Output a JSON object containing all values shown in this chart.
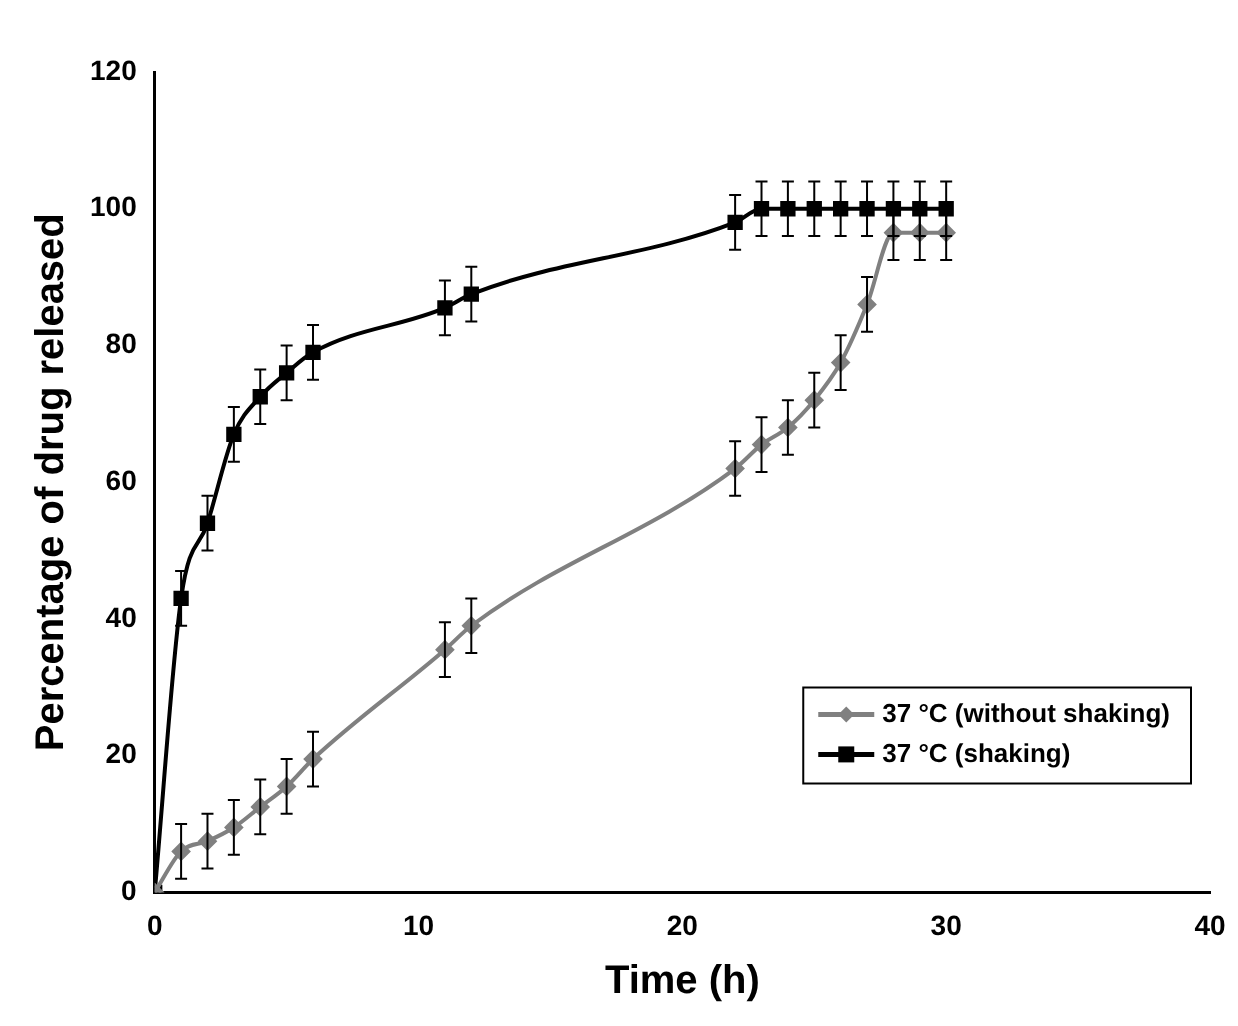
{
  "chart_data": {
    "type": "line",
    "xlabel": "Time (h)",
    "ylabel": "Percentage of drug released",
    "xlim": [
      0,
      40
    ],
    "xticks": [
      0,
      10,
      20,
      30,
      40
    ],
    "ylim": [
      0,
      120
    ],
    "yticks": [
      0,
      20,
      40,
      60,
      80,
      100,
      120
    ],
    "grid": false,
    "legend": "bottom right",
    "line_style": "solid",
    "series": [
      {
        "name": "37 °C (without shaking)",
        "color": "#808080",
        "marker": "diamond",
        "x": [
          0,
          1,
          2,
          3,
          4,
          5,
          6,
          11,
          12,
          22,
          23,
          24,
          25,
          26,
          27,
          28,
          29,
          30
        ],
        "values": [
          0,
          6,
          7.5,
          9.5,
          12.5,
          15.5,
          19.5,
          35.5,
          39,
          62,
          65.5,
          68,
          72,
          77.5,
          86,
          96.5,
          96.5,
          96.5
        ],
        "errors": [
          null,
          4,
          4,
          4,
          4,
          4,
          4,
          4,
          4,
          4,
          4,
          4,
          4,
          4,
          4,
          4,
          4,
          4
        ]
      },
      {
        "name": "37 °C (shaking)",
        "color": "#000000",
        "marker": "square",
        "x": [
          0,
          1,
          2,
          3,
          4,
          5,
          6,
          11,
          12,
          22,
          23,
          24,
          25,
          26,
          27,
          28,
          29,
          30
        ],
        "values": [
          0,
          43,
          54,
          67,
          72.5,
          76,
          79,
          85.5,
          87.5,
          98,
          100,
          100,
          100,
          100,
          100,
          100,
          100,
          100
        ],
        "errors": [
          null,
          4,
          4,
          4,
          4,
          4,
          4,
          4,
          4,
          4,
          4,
          4,
          4,
          4,
          4,
          4,
          4,
          4
        ]
      }
    ]
  }
}
